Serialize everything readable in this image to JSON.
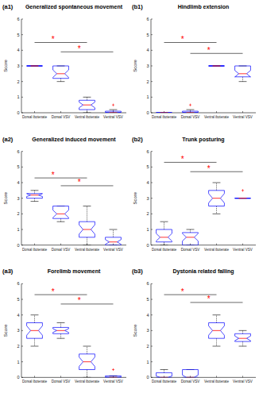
{
  "chart_data": [
    {
      "type": "box",
      "panel_label": "(a1)",
      "title": "Generalized spontaneous movement",
      "y_label": "Score",
      "categories": [
        "Dorsal ibotenate",
        "Dorsal VSV",
        "Ventral ibotenate",
        "Ventral VSV"
      ],
      "color": "#0000ff",
      "ylim": [
        0,
        6
      ],
      "yticks": [
        0,
        1,
        2,
        3,
        4,
        5,
        6
      ],
      "boxes": [
        {
          "min": 3,
          "q1": 3,
          "median": 3,
          "q3": 3,
          "max": 3,
          "outliers": []
        },
        {
          "min": 2,
          "q1": 2.2,
          "median": 2.5,
          "q3": 3,
          "max": 3,
          "outliers": []
        },
        {
          "min": 0,
          "q1": 0.2,
          "median": 0.5,
          "q3": 0.8,
          "max": 1,
          "outliers": []
        },
        {
          "min": 0,
          "q1": 0,
          "median": 0,
          "q3": 0.1,
          "max": 0.2,
          "outliers": [
            0.5
          ]
        }
      ],
      "annotations": [
        {
          "from": 0,
          "to": 2,
          "y": 4.5,
          "label": "*"
        },
        {
          "from": 1,
          "to": 3,
          "y": 3.9,
          "label": "*"
        }
      ]
    },
    {
      "type": "box",
      "panel_label": "(b1)",
      "title": "Hindlimb extension",
      "y_label": "Score",
      "categories": [
        "Dorsal ibotenate",
        "Dorsal VSV",
        "Ventral ibotenate",
        "Ventral VSV"
      ],
      "color": "#0000ff",
      "ylim": [
        0,
        6
      ],
      "yticks": [
        0,
        1,
        2,
        3,
        4,
        5,
        6
      ],
      "boxes": [
        {
          "min": 0,
          "q1": 0,
          "median": 0,
          "q3": 0,
          "max": 0,
          "outliers": []
        },
        {
          "min": 0,
          "q1": 0,
          "median": 0,
          "q3": 0.1,
          "max": 0.2,
          "outliers": [
            0.5
          ]
        },
        {
          "min": 3,
          "q1": 3,
          "median": 3,
          "q3": 3,
          "max": 3,
          "outliers": []
        },
        {
          "min": 2,
          "q1": 2.3,
          "median": 2.5,
          "q3": 3,
          "max": 3,
          "outliers": []
        }
      ],
      "annotations": [
        {
          "from": 0,
          "to": 2,
          "y": 4.5,
          "label": "*"
        },
        {
          "from": 1,
          "to": 3,
          "y": 3.8,
          "label": "*"
        }
      ]
    },
    {
      "type": "box",
      "panel_label": "(a2)",
      "title": "Generalized induced movement",
      "y_label": "Score",
      "categories": [
        "Dorsal ibotenate",
        "Dorsal VSV",
        "Ventral ibotenate",
        "Ventral VSV"
      ],
      "color": "#0000ff",
      "ylim": [
        0,
        6
      ],
      "yticks": [
        0,
        1,
        2,
        3,
        4,
        5,
        6
      ],
      "boxes": [
        {
          "min": 2.8,
          "q1": 3,
          "median": 3.2,
          "q3": 3.3,
          "max": 3.5,
          "outliers": []
        },
        {
          "min": 1.5,
          "q1": 1.7,
          "median": 2,
          "q3": 2.5,
          "max": 2.5,
          "outliers": []
        },
        {
          "min": 0,
          "q1": 0.5,
          "median": 1,
          "q3": 1.5,
          "max": 2.5,
          "outliers": []
        },
        {
          "min": 0,
          "q1": 0,
          "median": 0.2,
          "q3": 0.5,
          "max": 1,
          "outliers": []
        }
      ],
      "annotations": [
        {
          "from": 0,
          "to": 2,
          "y": 4.3,
          "label": "*"
        },
        {
          "from": 1,
          "to": 3,
          "y": 3.8,
          "label": "*"
        }
      ]
    },
    {
      "type": "box",
      "panel_label": "(b2)",
      "title": "Trunk posturing",
      "y_label": "Score",
      "categories": [
        "Dorsal ibotenate",
        "Dorsal VSV",
        "Ventral ibotenate",
        "Ventral VSV"
      ],
      "color": "#0000ff",
      "ylim": [
        0,
        6
      ],
      "yticks": [
        0,
        1,
        2,
        3,
        4,
        5,
        6
      ],
      "boxes": [
        {
          "min": 0,
          "q1": 0.2,
          "median": 0.5,
          "q3": 1,
          "max": 1.5,
          "outliers": []
        },
        {
          "min": 0,
          "q1": 0,
          "median": 0.5,
          "q3": 0.8,
          "max": 1,
          "outliers": []
        },
        {
          "min": 2,
          "q1": 2.5,
          "median": 3,
          "q3": 3.5,
          "max": 4,
          "outliers": []
        },
        {
          "min": 3,
          "q1": 3,
          "median": 3,
          "q3": 3,
          "max": 3,
          "outliers": [
            3.5
          ]
        }
      ],
      "annotations": [
        {
          "from": 0,
          "to": 2,
          "y": 5.3,
          "label": "*"
        },
        {
          "from": 1,
          "to": 3,
          "y": 4.7,
          "label": "*"
        }
      ]
    },
    {
      "type": "box",
      "panel_label": "(a3)",
      "title": "Forelimb movement",
      "y_label": "Score",
      "categories": [
        "Dorsal ibotenate",
        "Dorsal VSV",
        "Ventral ibotenate",
        "Ventral VSV"
      ],
      "color": "#0000ff",
      "ylim": [
        0,
        6
      ],
      "yticks": [
        0,
        1,
        2,
        3,
        4,
        5,
        6
      ],
      "boxes": [
        {
          "min": 2,
          "q1": 2.5,
          "median": 3,
          "q3": 3.5,
          "max": 4,
          "outliers": []
        },
        {
          "min": 2.5,
          "q1": 2.8,
          "median": 3,
          "q3": 3.2,
          "max": 3.5,
          "outliers": []
        },
        {
          "min": 0,
          "q1": 0.5,
          "median": 1,
          "q3": 1.5,
          "max": 2,
          "outliers": []
        },
        {
          "min": 0,
          "q1": 0,
          "median": 0,
          "q3": 0.1,
          "max": 0.1,
          "outliers": [
            0.5
          ]
        }
      ],
      "annotations": [
        {
          "from": 0,
          "to": 2,
          "y": 5.3,
          "label": "*"
        },
        {
          "from": 1,
          "to": 3,
          "y": 4.7,
          "label": "*"
        }
      ]
    },
    {
      "type": "box",
      "panel_label": "(b3)",
      "title": "Dystonia related falling",
      "y_label": "Score",
      "categories": [
        "Dorsal ibotenate",
        "Dorsal VSV",
        "Ventral ibotenate",
        "Ventral VSV"
      ],
      "color": "#0000ff",
      "ylim": [
        0,
        6
      ],
      "yticks": [
        0,
        1,
        2,
        3,
        4,
        5,
        6
      ],
      "boxes": [
        {
          "min": 0,
          "q1": 0,
          "median": 0,
          "q3": 0.3,
          "max": 0.5,
          "outliers": []
        },
        {
          "min": 0,
          "q1": 0,
          "median": 0,
          "q3": 0.5,
          "max": 0.5,
          "outliers": []
        },
        {
          "min": 2,
          "q1": 2.5,
          "median": 3,
          "q3": 3.5,
          "max": 4,
          "outliers": []
        },
        {
          "min": 2,
          "q1": 2.3,
          "median": 2.5,
          "q3": 2.8,
          "max": 3,
          "outliers": []
        }
      ],
      "annotations": [
        {
          "from": 0,
          "to": 2,
          "y": 5.3,
          "label": "*"
        },
        {
          "from": 1,
          "to": 3,
          "y": 4.8,
          "label": "*"
        }
      ]
    }
  ]
}
